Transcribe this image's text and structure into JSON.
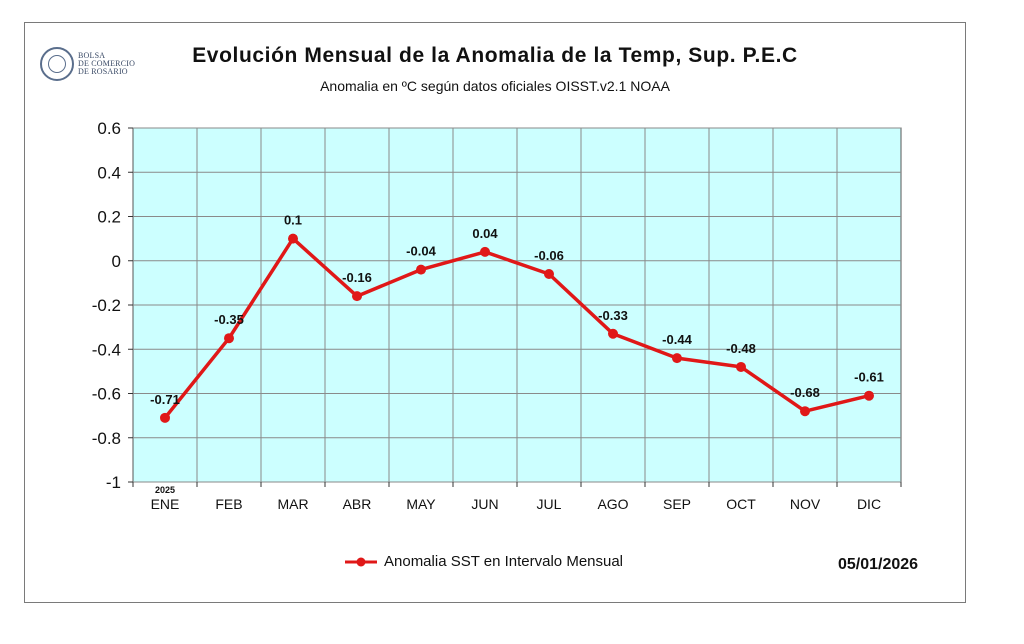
{
  "logo": {
    "text": "BOLSA\nDE COMERCIO\nDE ROSARIO"
  },
  "footer_date": "05/01/2026",
  "chart_data": {
    "type": "line",
    "title": "Evolución Mensual de la Anomalia de la Temp, Sup.  P.E.C",
    "subtitle": "Anomalia en ºC según datos oficiales OISST.v2.1 NOAA",
    "categories": [
      "ENE",
      "FEB",
      "MAR",
      "ABR",
      "MAY",
      "JUN",
      "JUL",
      "AGO",
      "SEP",
      "OCT",
      "NOV",
      "DIC"
    ],
    "year_label": "2025",
    "series": [
      {
        "name": "Anomalia SST en Intervalo Mensual",
        "values": [
          -0.71,
          -0.35,
          0.1,
          -0.16,
          -0.04,
          0.04,
          -0.06,
          -0.33,
          -0.44,
          -0.48,
          -0.68,
          -0.61
        ],
        "data_labels": [
          "-0.71",
          "-0.35",
          "0.1",
          "-0.16",
          "-0.04",
          "0.04",
          "-0.06",
          "-0.33",
          "-0.44",
          "-0.48",
          "-0.68",
          "-0.61"
        ]
      }
    ],
    "ylim": [
      -1,
      0.6
    ],
    "yticks": [
      -1,
      -0.8,
      -0.6,
      -0.4,
      -0.2,
      0,
      0.2,
      0.4,
      0.6
    ],
    "ytick_labels": [
      "-1",
      "-0.8",
      "-0.6",
      "-0.4",
      "-0.2",
      "0",
      "0.2",
      "0.4",
      "0.6"
    ],
    "grid": true,
    "legend_position": "bottom",
    "colors": {
      "line": "#e01818",
      "plot_background": "#ccffff",
      "grid": "#8a8a8a"
    }
  }
}
